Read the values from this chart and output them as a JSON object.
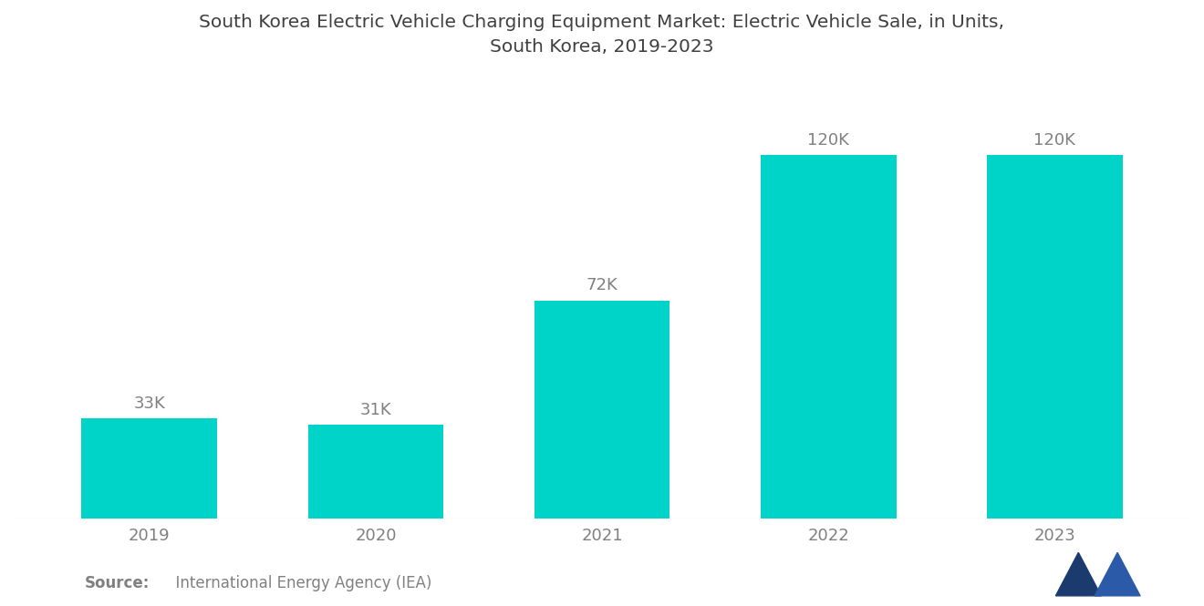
{
  "title": "South Korea Electric Vehicle Charging Equipment Market: Electric Vehicle Sale, in Units,\nSouth Korea, 2019-2023",
  "categories": [
    "2019",
    "2020",
    "2021",
    "2022",
    "2023"
  ],
  "values": [
    33000,
    31000,
    72000,
    120000,
    120000
  ],
  "labels": [
    "33K",
    "31K",
    "72K",
    "120K",
    "120K"
  ],
  "bar_color": "#00D4C8",
  "background_color": "#ffffff",
  "title_color": "#404040",
  "label_color": "#808080",
  "source_bold": "Source:",
  "source_text": "  International Energy Agency (IEA)",
  "ylim": [
    0,
    145000
  ],
  "title_fontsize": 14.5,
  "label_fontsize": 13,
  "tick_fontsize": 13,
  "source_fontsize": 12
}
